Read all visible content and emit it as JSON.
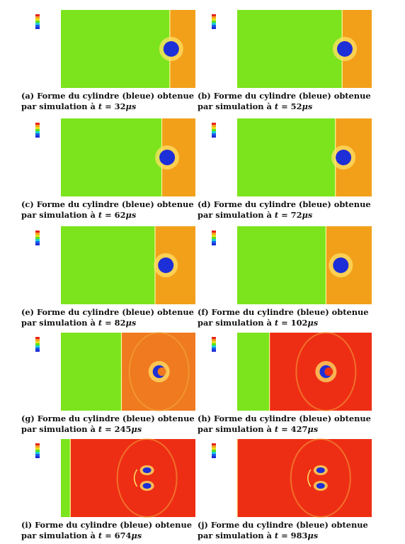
{
  "figure": {
    "panels": [
      {
        "id": "a",
        "label": "(a)",
        "caption_pre": "Forme du cylindre (bleue) obtenue par simulation à",
        "var": "t",
        "value": "32",
        "unit": "μs",
        "front": 0.81,
        "bubble": 0.82,
        "shock": false,
        "split": false
      },
      {
        "id": "b",
        "label": "(b)",
        "caption_pre": "Forme du cylindre (bleue) obtenue par simulation à",
        "var": "t",
        "value": "52",
        "unit": "μs",
        "front": 0.78,
        "bubble": 0.8,
        "shock": false,
        "split": false
      },
      {
        "id": "c",
        "label": "(c)",
        "caption_pre": "Forme du cylindre (bleue) obtenue par simulation à",
        "var": "t",
        "value": "62",
        "unit": "μs",
        "front": 0.75,
        "bubble": 0.79,
        "shock": false,
        "split": false
      },
      {
        "id": "d",
        "label": "(d)",
        "caption_pre": "Forme du cylindre (bleue) obtenue par simulation à",
        "var": "t",
        "value": "72",
        "unit": "μs",
        "front": 0.73,
        "bubble": 0.79,
        "shock": false,
        "split": false
      },
      {
        "id": "e",
        "label": "(e)",
        "caption_pre": "Forme du cylindre (bleue) obtenue par simulation à",
        "var": "t",
        "value": "82",
        "unit": "μs",
        "front": 0.7,
        "bubble": 0.78,
        "shock": false,
        "split": false
      },
      {
        "id": "f",
        "label": "(f)",
        "caption_pre": "Forme du cylindre (bleue) obtenue par simulation à",
        "var": "t",
        "value": "102",
        "unit": "μs",
        "front": 0.66,
        "bubble": 0.77,
        "shock": false,
        "split": false
      },
      {
        "id": "g",
        "label": "(g)",
        "caption_pre": "Forme du cylindre (bleue) obtenue par simulation à",
        "var": "t",
        "value": "245",
        "unit": "μs",
        "front": 0.45,
        "bubble": 0.73,
        "shock": true,
        "split": false
      },
      {
        "id": "h",
        "label": "(h)",
        "caption_pre": "Forme du cylindre (bleue) obtenue par simulation à",
        "var": "t",
        "value": "427",
        "unit": "μs",
        "front": 0.24,
        "bubble": 0.66,
        "shock": true,
        "split": false
      },
      {
        "id": "i",
        "label": "(i)",
        "caption_pre": "Forme du cylindre (bleue) obtenue par simulation à",
        "var": "t",
        "value": "674",
        "unit": "μs",
        "front": 0.07,
        "bubble": 0.64,
        "shock": true,
        "split": true
      },
      {
        "id": "j",
        "label": "(j)",
        "caption_pre": "Forme du cylindre (bleue) obtenue par simulation à",
        "var": "t",
        "value": "983",
        "unit": "μs",
        "front": 0.0,
        "bubble": 0.62,
        "shock": true,
        "split": true
      }
    ],
    "colors": {
      "ambient": "#7ce41c",
      "shocked": "#f2a01a",
      "late": "#ee2e14",
      "bubble": "#1d2fd6",
      "halo": "#ffe066"
    }
  }
}
